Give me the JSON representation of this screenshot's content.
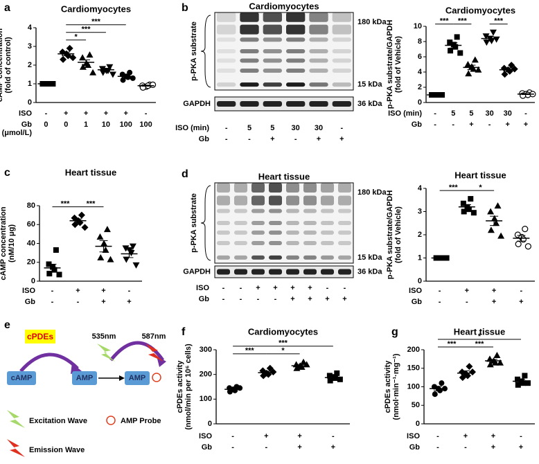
{
  "chart_data": [
    {
      "type": "dot",
      "panel": "a",
      "title": "Cardiomyocytes",
      "ylabel": [
        "cAMP concentration",
        "(fold of control)"
      ],
      "ylim": [
        0,
        4
      ],
      "yticks": [
        0,
        1,
        2,
        3,
        4
      ],
      "color": "#000000",
      "conditions": [
        {
          "label": [
            "ISO"
          ],
          "values": [
            "-",
            "+",
            "+",
            "+",
            "+",
            "-"
          ]
        },
        {
          "label": [
            "Gb",
            "(μmol/L)"
          ],
          "values": [
            "0",
            "0",
            "1",
            "10",
            "100",
            "100"
          ]
        }
      ],
      "groups": [
        {
          "marker": "square",
          "points": [
            1,
            1,
            1,
            1,
            1,
            1
          ],
          "mean": 1,
          "sem": 0.01
        },
        {
          "marker": "diamond",
          "points": [
            2.9,
            2.7,
            2.6,
            2.5,
            2.3,
            2.4
          ],
          "mean": 2.6,
          "sem": 0.1
        },
        {
          "marker": "triangle",
          "points": [
            2.55,
            2.4,
            2.1,
            2.0,
            1.9,
            1.6
          ],
          "mean": 2.15,
          "sem": 0.13
        },
        {
          "marker": "triangle-down",
          "points": [
            1.9,
            1.8,
            1.7,
            1.7,
            1.6,
            1.5
          ],
          "mean": 1.75,
          "sem": 0.07
        },
        {
          "marker": "circle",
          "points": [
            1.6,
            1.5,
            1.4,
            1.35,
            1.2,
            1.3
          ],
          "mean": 1.4,
          "sem": 0.06
        },
        {
          "marker": "circle-open",
          "points": [
            0.95,
            0.9,
            0.85,
            0.9,
            0.8,
            0.95
          ],
          "mean": 0.9,
          "sem": 0.03
        }
      ],
      "comparisons": [
        {
          "label": "*",
          "between": [
            1,
            2
          ]
        },
        {
          "label": "***",
          "between": [
            1,
            3
          ]
        },
        {
          "label": "***",
          "between": [
            1,
            4
          ]
        }
      ]
    },
    {
      "type": "dot",
      "title": "Cardiomyocytes",
      "ylabel": [
        "p-PKA substrate/GAPDH",
        "(fold of Vehicle)"
      ],
      "ylim": [
        0,
        10
      ],
      "yticks": [
        0,
        2,
        4,
        6,
        8,
        10
      ],
      "color": "#000000",
      "conditions": [
        {
          "label": [
            "ISO (min)"
          ],
          "values": [
            "-",
            "5",
            "5",
            "30",
            "30",
            "-"
          ]
        },
        {
          "label": [
            "Gb"
          ],
          "values": [
            "-",
            "-",
            "+",
            "-",
            "+",
            "+"
          ]
        }
      ],
      "groups": [
        {
          "marker": "square",
          "points": [
            1,
            1,
            1,
            1,
            1,
            1
          ],
          "mean": 1,
          "sem": 0.02
        },
        {
          "marker": "square",
          "points": [
            8.6,
            7.9,
            7.6,
            7.3,
            6.8,
            6.5
          ],
          "mean": 7.5,
          "sem": 0.35
        },
        {
          "marker": "triangle",
          "points": [
            5.6,
            5.0,
            4.7,
            4.4,
            3.8,
            4.3
          ],
          "mean": 4.6,
          "sem": 0.3
        },
        {
          "marker": "triangle-down",
          "points": [
            9.2,
            8.7,
            8.4,
            8.1,
            7.9,
            8.3
          ],
          "mean": 8.4,
          "sem": 0.3
        },
        {
          "marker": "diamond",
          "points": [
            4.9,
            4.5,
            4.3,
            4.1,
            3.7,
            4.4
          ],
          "mean": 4.3,
          "sem": 0.25
        },
        {
          "marker": "circle-open",
          "points": [
            1.3,
            1.2,
            1.1,
            1.0,
            0.9,
            1.1
          ],
          "mean": 1.1,
          "sem": 0.06
        }
      ],
      "comparisons": [
        {
          "label": "***",
          "between": [
            0,
            1
          ]
        },
        {
          "label": "***",
          "between": [
            1,
            2
          ]
        },
        {
          "label": "***",
          "between": [
            3,
            4
          ]
        }
      ]
    },
    {
      "type": "dot",
      "panel": "c",
      "title": "Heart tissue",
      "ylabel": [
        "cAMP concentration",
        "(nM/10 μg)"
      ],
      "ylim": [
        0,
        80
      ],
      "yticks": [
        0,
        20,
        40,
        60,
        80
      ],
      "color": "#000000",
      "conditions": [
        {
          "label": [
            "ISO"
          ],
          "values": [
            "-",
            "+",
            "+",
            "-"
          ]
        },
        {
          "label": [
            "Gb"
          ],
          "values": [
            "-",
            "-",
            "+",
            "+"
          ]
        }
      ],
      "groups": [
        {
          "marker": "square",
          "points": [
            33,
            18,
            15,
            12,
            8,
            7
          ],
          "mean": 14,
          "sem": 4
        },
        {
          "marker": "diamond",
          "points": [
            70,
            67,
            64,
            62,
            60,
            57
          ],
          "mean": 64,
          "sem": 2
        },
        {
          "marker": "triangle",
          "points": [
            55,
            47,
            40,
            33,
            25,
            23
          ],
          "mean": 37,
          "sem": 6
        },
        {
          "marker": "triangle-down",
          "points": [
            37,
            35,
            33,
            30,
            23,
            17
          ],
          "mean": 29,
          "sem": 4
        }
      ],
      "comparisons": [
        {
          "label": "***",
          "between": [
            0,
            1
          ]
        },
        {
          "label": "***",
          "between": [
            1,
            2
          ]
        }
      ]
    },
    {
      "type": "dot",
      "title": "Heart tissue",
      "ylabel": [
        "p-PKA substrate/GAPDH",
        "(fold of Vehicle)"
      ],
      "ylim": [
        0,
        4
      ],
      "yticks": [
        0,
        1,
        2,
        3,
        4
      ],
      "color": "#000000",
      "conditions": [
        {
          "label": [
            "ISO"
          ],
          "values": [
            "-",
            "+",
            "+",
            "-"
          ]
        },
        {
          "label": [
            "Gb"
          ],
          "values": [
            "-",
            "-",
            "+",
            "+"
          ]
        }
      ],
      "groups": [
        {
          "marker": "square",
          "points": [
            1,
            1,
            1,
            1,
            1,
            1
          ],
          "mean": 1,
          "sem": 0.01
        },
        {
          "marker": "square",
          "points": [
            3.55,
            3.35,
            3.2,
            3.1,
            3.0,
            2.95
          ],
          "mean": 3.2,
          "sem": 0.1
        },
        {
          "marker": "triangle",
          "points": [
            3.25,
            3.0,
            2.7,
            2.5,
            2.2,
            1.95
          ],
          "mean": 2.6,
          "sem": 0.2
        },
        {
          "marker": "circle-open",
          "points": [
            2.25,
            2.0,
            1.9,
            1.8,
            1.6,
            1.5
          ],
          "mean": 1.85,
          "sem": 0.12
        }
      ],
      "comparisons": [
        {
          "label": "***",
          "between": [
            0,
            1
          ]
        },
        {
          "label": "*",
          "between": [
            1,
            2
          ]
        }
      ]
    },
    {
      "type": "dot",
      "panel": "f",
      "title": "Cardiomyocytes",
      "ylabel": [
        "cPDEs activity",
        "(nmol/min per 10⁶ cells)"
      ],
      "ylim": [
        0,
        300
      ],
      "yticks": [
        0,
        100,
        200,
        300
      ],
      "color": "#000000",
      "conditions": [
        {
          "label": [
            "ISO"
          ],
          "values": [
            "-",
            "+",
            "+",
            "-"
          ]
        },
        {
          "label": [
            "Gb"
          ],
          "values": [
            "-",
            "-",
            "+",
            "+"
          ]
        }
      ],
      "groups": [
        {
          "marker": "circle",
          "points": [
            150,
            145,
            140,
            135,
            130,
            145
          ],
          "mean": 140,
          "sem": 4
        },
        {
          "marker": "diamond",
          "points": [
            225,
            215,
            205,
            200,
            195,
            210
          ],
          "mean": 207,
          "sem": 6
        },
        {
          "marker": "triangle",
          "points": [
            250,
            240,
            235,
            230,
            225,
            240
          ],
          "mean": 235,
          "sem": 6
        },
        {
          "marker": "square",
          "points": [
            205,
            195,
            190,
            185,
            175,
            180
          ],
          "mean": 187,
          "sem": 5
        }
      ],
      "comparisons": [
        {
          "label": "***",
          "between": [
            0,
            1
          ]
        },
        {
          "label": "*",
          "between": [
            1,
            2
          ]
        },
        {
          "label": "***",
          "between": [
            0,
            3
          ]
        }
      ]
    },
    {
      "type": "dot",
      "panel": "g",
      "title": "Heart tissue",
      "ylabel": [
        "cPDEs activity",
        "(nmol·min⁻¹·mg⁻¹)"
      ],
      "ylim": [
        0,
        200
      ],
      "yticks": [
        0,
        50,
        100,
        150,
        200
      ],
      "color": "#000000",
      "conditions": [
        {
          "label": [
            "ISO"
          ],
          "values": [
            "-",
            "+",
            "+",
            "-"
          ]
        },
        {
          "label": [
            "Gb"
          ],
          "values": [
            "-",
            "-",
            "+",
            "+"
          ]
        }
      ],
      "groups": [
        {
          "marker": "circle",
          "points": [
            110,
            100,
            95,
            90,
            80,
            95
          ],
          "mean": 95,
          "sem": 6
        },
        {
          "marker": "diamond",
          "points": [
            155,
            140,
            135,
            130,
            125,
            140
          ],
          "mean": 137,
          "sem": 6
        },
        {
          "marker": "triangle",
          "points": [
            185,
            175,
            170,
            165,
            160,
            165
          ],
          "mean": 170,
          "sem": 4
        },
        {
          "marker": "square",
          "points": [
            130,
            120,
            115,
            110,
            105,
            110
          ],
          "mean": 115,
          "sem": 5
        }
      ],
      "comparisons": [
        {
          "label": "***",
          "between": [
            0,
            1
          ]
        },
        {
          "label": "***",
          "between": [
            1,
            2
          ]
        },
        {
          "label": "*",
          "between": [
            0,
            3
          ]
        }
      ]
    }
  ],
  "blots": [
    {
      "panel": "b",
      "title": "Cardiomyocytes",
      "protein_label": "p-PKA substrate",
      "loading_label": "GAPDH",
      "marker_top": "180 kDa",
      "marker_bottom": "15 kDa",
      "marker_loading": "36 kDa",
      "conditions": [
        {
          "label": "ISO (min)",
          "values": [
            "-",
            "5",
            "5",
            "30",
            "30",
            "-"
          ]
        },
        {
          "label": "Gb",
          "values": [
            "-",
            "-",
            "+",
            "-",
            "+",
            "+"
          ]
        }
      ]
    },
    {
      "panel": "d",
      "title": "Heart tissue",
      "protein_label": "p-PKA substrate",
      "loading_label": "GAPDH",
      "marker_top": "180 kDa",
      "marker_bottom": "15 kDa",
      "marker_loading": "36 kDa",
      "conditions": [
        {
          "label": "ISO",
          "values": [
            "-",
            "-",
            "+",
            "+",
            "+",
            "+",
            "-",
            "-"
          ]
        },
        {
          "label": "Gb",
          "values": [
            "-",
            "-",
            "-",
            "-",
            "+",
            "+",
            "+",
            "+"
          ]
        }
      ]
    }
  ],
  "diagram": {
    "panel": "e",
    "enzyme": "cPDEs",
    "substrate": "cAMP",
    "product": "AMP",
    "probe_product": "AMP",
    "excitation": "535nm",
    "emission": "587nm",
    "legend": [
      "Excitation Wave",
      "AMP Probe",
      "Emission Wave"
    ]
  }
}
